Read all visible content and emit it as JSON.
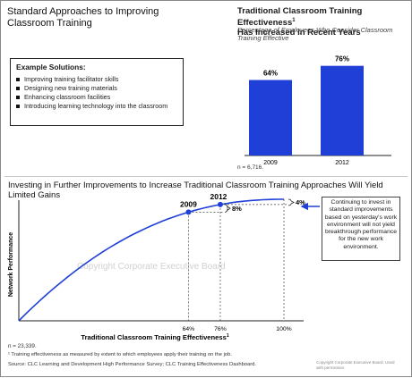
{
  "left_title": "Standard Approaches to Improving Classroom Training",
  "examples": {
    "header": "Example Solutions:",
    "items": [
      "Improving training facilitator skills",
      "Designing new training materials",
      "Enhancing classroom facilities",
      "Introducing learning technology into the classroom"
    ]
  },
  "bar_chart": {
    "title": "Traditional Classroom Training Effectiveness",
    "title_sup": "1",
    "title_line2": "Has Increased in Recent Years",
    "subtitle": "Percentage of Employees Who Consider Classroom Training Effective",
    "n_note": "n = 6,716."
  },
  "curve_chart": {
    "title": "Investing in Further Improvements to Increase Traditional Classroom Training Approaches Will Yield Limited Gains",
    "callout": "Continuing to invest in standard improvements based on yesterday's work environment will not yield breakthrough performance for the new work environment.",
    "n_note": "n = 23,339."
  },
  "footnote": "¹ Training effectiveness as measured by extent to which employees apply their training on the job.",
  "source": "Source: CLC Learning and Development High Performance Survey; CLC Training Effectiveness Dashboard.",
  "copyright_small": "Copyright Corporate Executive Board. Used with permission.",
  "watermark": "Copyright Corporate Executive Board",
  "colors": {
    "bar": "#1f3fd6",
    "curve": "#1f3fd6",
    "arrow": "#1f3fd6"
  },
  "chart_data": [
    {
      "type": "bar",
      "title": "Traditional Classroom Training Effectiveness Has Increased in Recent Years",
      "categories": [
        "2009",
        "2012"
      ],
      "values": [
        64,
        76
      ],
      "value_labels": [
        "64%",
        "76%"
      ],
      "ylim": [
        0,
        100
      ],
      "grid": false
    },
    {
      "type": "line",
      "title": "Investing in Further Improvements to Increase Traditional Classroom Training Approaches Will Yield Limited Gains",
      "xlabel": "Traditional Classroom Training Effectiveness",
      "xlabel_sup": "1",
      "ylabel": "Network Performance",
      "x_ticks": [
        "64%",
        "76%",
        "100%"
      ],
      "x_tick_values": [
        64,
        76,
        100
      ],
      "points": [
        {
          "label": "2009",
          "x": 64
        },
        {
          "label": "2012",
          "x": 76
        }
      ],
      "gaps": [
        {
          "label": "8%",
          "from": "2009",
          "to": "2012"
        },
        {
          "label": "4%",
          "from": "2012",
          "to": "100%"
        }
      ],
      "grid": false
    }
  ]
}
